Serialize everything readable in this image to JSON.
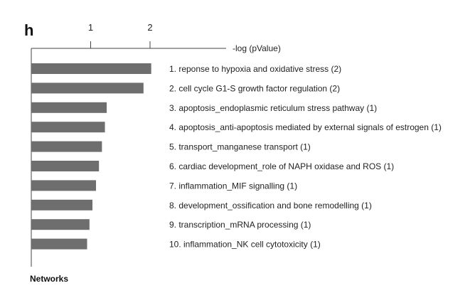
{
  "panel_letter": "h",
  "chart_data": {
    "type": "bar",
    "orientation": "horizontal",
    "xlabel": "-log (pValue)",
    "ylabel": "Networks",
    "xlim": [
      0,
      2.3
    ],
    "xticks": [
      "1",
      "2"
    ],
    "grid": false,
    "categories": [
      "1. reponse to hypoxia and oxidative stress (2)",
      "2. cell cycle G1-S growth factor regulation (2)",
      "3. apoptosis_endoplasmic reticulum stress pathway (1)",
      "4. apoptosis_anti-apoptosis mediated by external signals of estrogen (1)",
      "5. transport_manganese transport (1)",
      "6. cardiac development_role of NAPH oxidase and ROS (1)",
      "7. inflammation_MIF signalling (1)",
      "8. development_ossification and bone remodelling (1)",
      "9. transcription_mRNA processing (1)",
      "10. inflammation_NK cell cytotoxicity (1)"
    ],
    "values": [
      2.02,
      1.89,
      1.27,
      1.24,
      1.19,
      1.14,
      1.09,
      1.03,
      0.98,
      0.94
    ],
    "bar_color": "#6e6e6e"
  }
}
